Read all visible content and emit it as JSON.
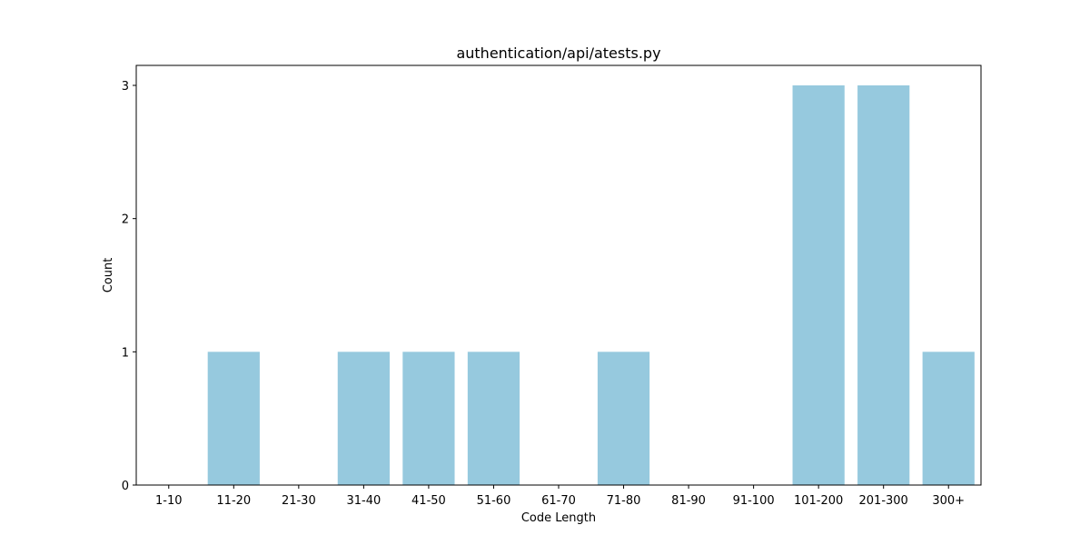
{
  "chart_data": {
    "type": "bar",
    "title": "authentication/api/atests.py",
    "xlabel": "Code Length",
    "ylabel": "Count",
    "categories": [
      "1-10",
      "11-20",
      "21-30",
      "31-40",
      "41-50",
      "51-60",
      "61-70",
      "71-80",
      "81-90",
      "91-100",
      "101-200",
      "201-300",
      "300+"
    ],
    "values": [
      0,
      1,
      0,
      1,
      1,
      1,
      0,
      1,
      0,
      0,
      3,
      3,
      1
    ],
    "yticks": [
      "0",
      "1",
      "2",
      "3"
    ],
    "ylim": [
      0,
      3.15
    ],
    "grid": false,
    "legend": "none",
    "colors": {
      "bar": "#96c9de",
      "axis": "#000000",
      "background": "#ffffff"
    }
  }
}
